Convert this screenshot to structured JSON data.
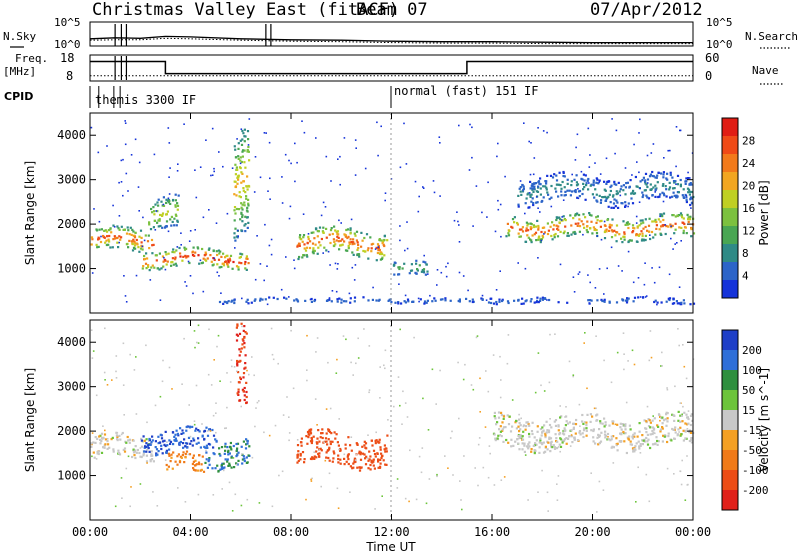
{
  "header": {
    "station": "Christmas Valley East (fitACF)",
    "beam": "Beam 07",
    "date": "07/Apr/2012"
  },
  "strip_labels": {
    "nsky": "N.Sky",
    "nsearch": "N.Search",
    "freq": "Freq.",
    "freq_unit": "[MHz]",
    "nave": "Nave",
    "cpid": "CPID",
    "noise_tick_hi": "10^5",
    "noise_tick_lo": "10^0",
    "noise_right_hi": "10^5",
    "noise_right_lo": "10^0",
    "freq_tick_hi": "18",
    "freq_tick_lo": "8",
    "nave_tick_hi": "60",
    "nave_tick_lo": "0"
  },
  "cpid_segments": [
    {
      "label": "themis 3300 IF",
      "start_hour": 0,
      "end_hour": 12
    },
    {
      "label": "normal (fast) 151 IF",
      "start_hour": 12,
      "end_hour": 24
    }
  ],
  "axes": {
    "ylabel": "Slant Range [km]",
    "xlabel": "Time UT",
    "x_ticks": [
      "00:00",
      "04:00",
      "08:00",
      "12:00",
      "16:00",
      "20:00",
      "00:00"
    ],
    "y_ticks": [
      "1000",
      "2000",
      "3000",
      "4000"
    ]
  },
  "colorbars": {
    "power": {
      "label": "Power [dB]",
      "ticks": [
        "4",
        "8",
        "12",
        "16",
        "20",
        "24",
        "28"
      ],
      "colors": [
        "#1533d9",
        "#2c64c8",
        "#2f8a86",
        "#49a653",
        "#7cc13f",
        "#bfcf24",
        "#f2a621",
        "#f27a1b",
        "#ef4a17",
        "#e01d14"
      ]
    },
    "velocity": {
      "label": "Velocity [m s^-1]",
      "ticks": [
        "200",
        "100",
        "50",
        "15",
        "-15",
        "-50",
        "-100",
        "-200"
      ],
      "colors": [
        "#1f3fc7",
        "#2f6fd8",
        "#2f8f3f",
        "#6cc43a",
        "#c8c8c8",
        "#f4a023",
        "#f07a18",
        "#ec4d16",
        "#e0201a"
      ]
    }
  },
  "chart_data": [
    {
      "type": "line",
      "panel": "noise",
      "series": [
        {
          "name": "N.Sky",
          "x": [
            0,
            1,
            2,
            3,
            4,
            6,
            8,
            10,
            12,
            14,
            16,
            18,
            20,
            22,
            24
          ],
          "y": [
            1.5,
            1.7,
            1.6,
            2.0,
            1.9,
            1.5,
            1.3,
            1.2,
            1.0,
            0.9,
            0.9,
            0.8,
            0.7,
            0.7,
            0.7
          ]
        },
        {
          "name": "N.Search",
          "x": [
            0,
            1,
            2,
            3,
            4,
            6,
            8,
            10,
            12,
            14,
            16,
            18,
            20,
            22,
            24
          ],
          "y": [
            1.2,
            1.3,
            1.3,
            1.6,
            1.5,
            1.2,
            1.0,
            0.9,
            0.7,
            0.6,
            0.6,
            0.5,
            0.5,
            0.5,
            0.5
          ]
        }
      ]
    },
    {
      "type": "line",
      "panel": "frequency_nave",
      "series": [
        {
          "name": "Freq.",
          "x": [
            0,
            3,
            3,
            15,
            15,
            24
          ],
          "y": [
            16.5,
            16.5,
            10,
            10,
            16.5,
            16.5
          ]
        },
        {
          "name": "Nave",
          "x": [
            0,
            24
          ],
          "y": [
            12,
            12
          ]
        }
      ]
    },
    {
      "type": "heatmap",
      "panel": "power",
      "x_range": [
        0,
        24
      ],
      "y_range": [
        0,
        4500
      ],
      "zlabel": "Power [dB]",
      "z_range": [
        0,
        30
      ],
      "bands": [
        {
          "x0": 0.0,
          "x1": 2.5,
          "y_center": 1650,
          "y_halfwidth": 250,
          "peak_db": 26
        },
        {
          "x0": 2.0,
          "x1": 6.3,
          "y_center": 1250,
          "y_halfwidth": 200,
          "peak_db": 28
        },
        {
          "x0": 2.3,
          "x1": 3.5,
          "y_center": 2200,
          "y_halfwidth": 350,
          "peak_db": 18
        },
        {
          "x0": 5.7,
          "x1": 6.3,
          "y_center": 2700,
          "y_halfwidth": 1200,
          "peak_db": 20
        },
        {
          "x0": 8.2,
          "x1": 11.8,
          "y_center": 1600,
          "y_halfwidth": 300,
          "peak_db": 26
        },
        {
          "x0": 12.0,
          "x1": 13.5,
          "y_center": 1000,
          "y_halfwidth": 150,
          "peak_db": 12
        },
        {
          "x0": 16.5,
          "x1": 24.0,
          "y_center": 1950,
          "y_halfwidth": 250,
          "peak_db": 26
        },
        {
          "x0": 17.0,
          "x1": 24.0,
          "y_center": 2800,
          "y_halfwidth": 300,
          "peak_db": 8
        },
        {
          "x0": 5.0,
          "x1": 24.0,
          "y_center": 300,
          "y_halfwidth": 60,
          "peak_db": 6
        }
      ]
    },
    {
      "type": "heatmap",
      "panel": "velocity",
      "x_range": [
        0,
        24
      ],
      "y_range": [
        0,
        4500
      ],
      "zlabel": "Velocity [m s^-1]",
      "z_range": [
        -200,
        200
      ],
      "bands": [
        {
          "x0": 0.0,
          "x1": 2.5,
          "y_center": 1650,
          "y_halfwidth": 250,
          "velocity": 0
        },
        {
          "x0": 2.0,
          "x1": 5.0,
          "y_center": 1800,
          "y_halfwidth": 250,
          "velocity": 200
        },
        {
          "x0": 3.0,
          "x1": 4.5,
          "y_center": 1300,
          "y_halfwidth": 200,
          "velocity": -60
        },
        {
          "x0": 4.5,
          "x1": 6.3,
          "y_center": 1500,
          "y_halfwidth": 300,
          "velocity": 100
        },
        {
          "x0": 5.8,
          "x1": 6.2,
          "y_center": 3200,
          "y_halfwidth": 900,
          "velocity": -200
        },
        {
          "x0": 8.2,
          "x1": 11.8,
          "y_center": 1600,
          "y_halfwidth": 350,
          "velocity": -120
        },
        {
          "x0": 16.0,
          "x1": 24.0,
          "y_center": 2000,
          "y_halfwidth": 350,
          "velocity": 0
        }
      ]
    }
  ]
}
